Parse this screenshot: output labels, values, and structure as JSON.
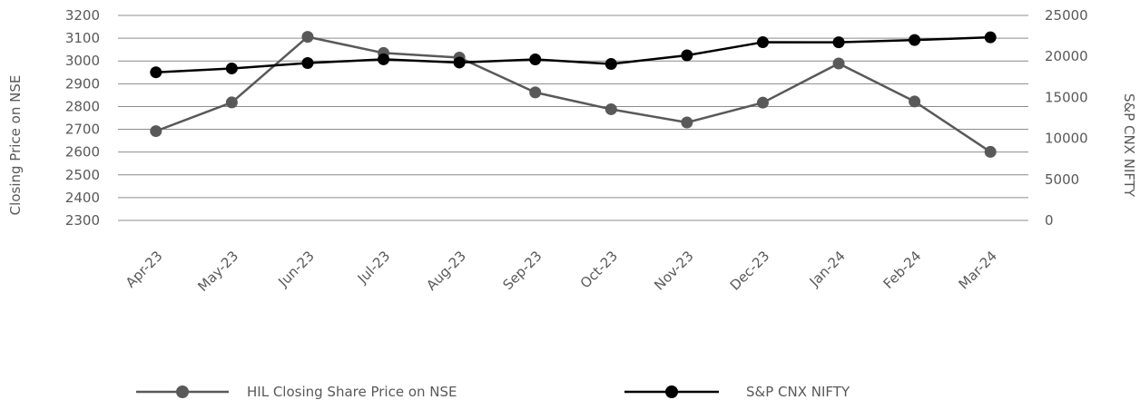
{
  "chart_data": {
    "type": "line",
    "categories": [
      "Apr-23",
      "May-23",
      "Jun-23",
      "Jul-23",
      "Aug-23",
      "Sep-23",
      "Oct-23",
      "Nov-23",
      "Dec-23",
      "Jan-24",
      "Feb-24",
      "Mar-24"
    ],
    "ylabel": "Closing Price on NSE",
    "y2label": "S&P CNX NIFTY",
    "ylim": [
      2300,
      3200
    ],
    "yticks": [
      2300,
      2400,
      2500,
      2600,
      2700,
      2800,
      2900,
      3000,
      3100,
      3200
    ],
    "y2lim": [
      0,
      25000
    ],
    "y2ticks": [
      0,
      5000,
      10000,
      15000,
      20000,
      25000
    ],
    "grid": true,
    "legend_position": "bottom",
    "series": [
      {
        "name": "HIL Closing Share Price on NSE",
        "axis": "left",
        "color": "#595959",
        "values": [
          2692,
          2818,
          3106,
          3035,
          3015,
          2862,
          2788,
          2730,
          2817,
          2989,
          2822,
          2601
        ]
      },
      {
        "name": "S&P CNX NIFTY",
        "axis": "right",
        "color": "#000000",
        "values": [
          18065,
          18534,
          19189,
          19646,
          19254,
          19638,
          19080,
          20133,
          21731,
          21726,
          22000,
          22327
        ]
      }
    ]
  }
}
